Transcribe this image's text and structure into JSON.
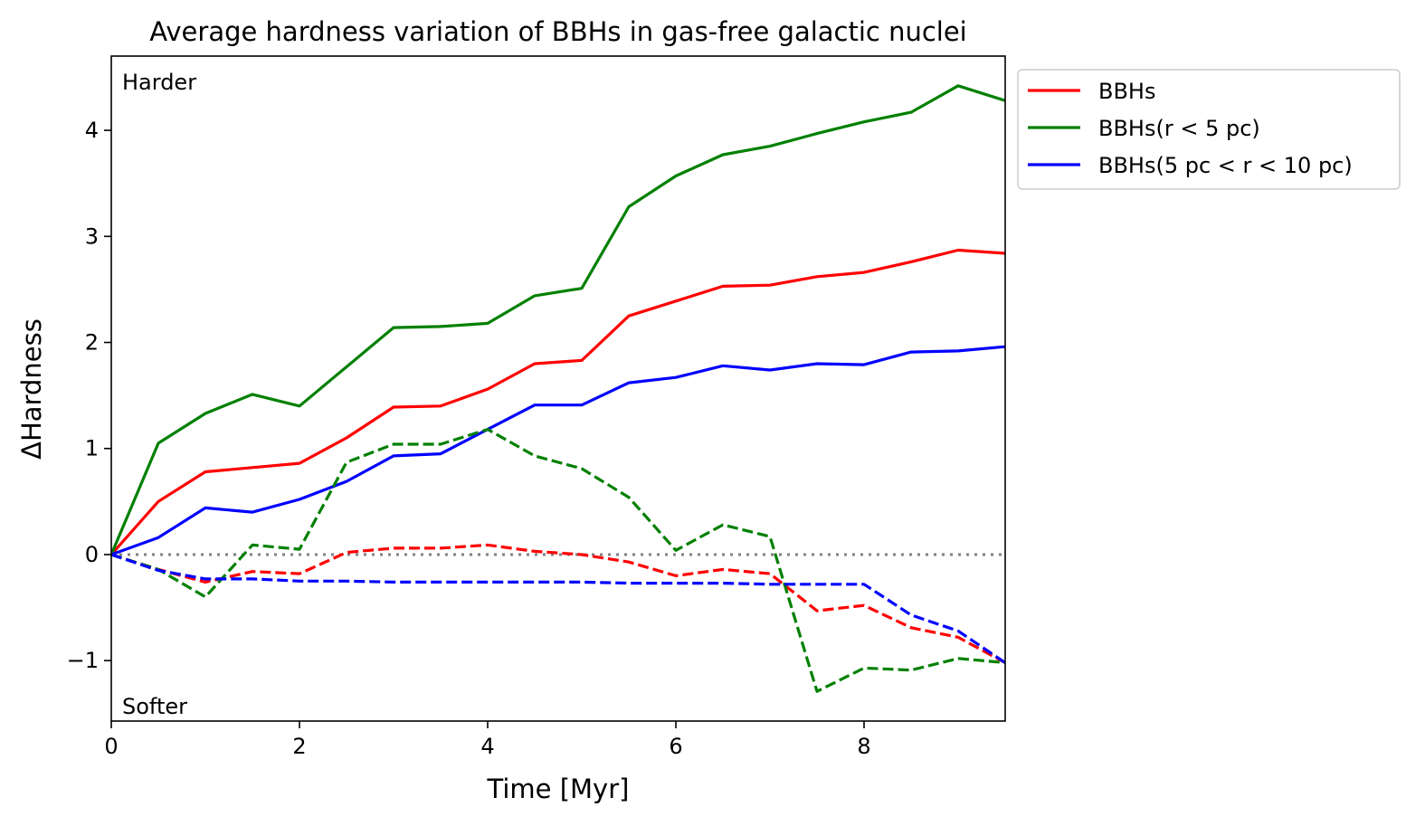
{
  "chart_data": {
    "type": "line",
    "title": "Average hardness variation of BBHs in gas-free galactic nuclei",
    "xlabel": "Time [Myr]",
    "ylabel": "ΔHardness",
    "xlim": [
      0,
      9.5
    ],
    "ylim": [
      -1.57,
      4.7
    ],
    "xticks": [
      0,
      2,
      4,
      6,
      8
    ],
    "xtick_labels": [
      "0",
      "2",
      "4",
      "6",
      "8"
    ],
    "yticks": [
      -1,
      0,
      1,
      2,
      3,
      4
    ],
    "ytick_labels": [
      "−1",
      "0",
      "1",
      "2",
      "3",
      "4"
    ],
    "grid": false,
    "legend_placement": "outside top-right",
    "annotations": {
      "top": "Harder",
      "bottom": "Softer"
    },
    "reference_line": {
      "y": 0,
      "style": "dotted",
      "color": "#808080"
    },
    "x": [
      0,
      0.5,
      1,
      1.5,
      2,
      2.5,
      3,
      3.5,
      4,
      4.5,
      5,
      5.5,
      6,
      6.5,
      7,
      7.5,
      8,
      8.5,
      9,
      9.5
    ],
    "series": [
      {
        "name": "BBHs",
        "color": "#ff0000",
        "style": "solid",
        "legend": true,
        "values": [
          0,
          0.5,
          0.78,
          0.82,
          0.86,
          1.1,
          1.39,
          1.4,
          1.56,
          1.8,
          1.83,
          2.25,
          2.39,
          2.53,
          2.54,
          2.62,
          2.66,
          2.76,
          2.87,
          2.84
        ]
      },
      {
        "name": "BBHs(r < 5 pc)",
        "color": "#008000",
        "style": "solid",
        "legend": true,
        "values": [
          0,
          1.05,
          1.33,
          1.51,
          1.4,
          1.77,
          2.14,
          2.15,
          2.18,
          2.44,
          2.51,
          3.28,
          3.57,
          3.77,
          3.85,
          3.97,
          4.08,
          4.17,
          4.42,
          4.28
        ]
      },
      {
        "name": "BBHs(5 pc < r < 10 pc)",
        "color": "#0000ff",
        "style": "solid",
        "legend": true,
        "values": [
          0,
          0.16,
          0.44,
          0.4,
          0.52,
          0.69,
          0.93,
          0.95,
          1.18,
          1.41,
          1.41,
          1.62,
          1.67,
          1.78,
          1.74,
          1.8,
          1.79,
          1.91,
          1.92,
          1.96
        ]
      },
      {
        "color": "#ff0000",
        "style": "dashed",
        "legend": false,
        "values": [
          0,
          -0.14,
          -0.26,
          -0.16,
          -0.18,
          0.02,
          0.06,
          0.06,
          0.09,
          0.03,
          0.0,
          -0.07,
          -0.2,
          -0.14,
          -0.18,
          -0.53,
          -0.48,
          -0.69,
          -0.78,
          -1.02
        ]
      },
      {
        "color": "#008000",
        "style": "dashed",
        "legend": false,
        "values": [
          0,
          -0.14,
          -0.4,
          0.09,
          0.05,
          0.87,
          1.04,
          1.04,
          1.18,
          0.93,
          0.81,
          0.54,
          0.04,
          0.28,
          0.17,
          -1.29,
          -1.07,
          -1.09,
          -0.98,
          -1.02
        ]
      },
      {
        "color": "#0000ff",
        "style": "dashed",
        "legend": false,
        "values": [
          0,
          -0.15,
          -0.23,
          -0.23,
          -0.25,
          -0.25,
          -0.26,
          -0.26,
          -0.26,
          -0.26,
          -0.26,
          -0.27,
          -0.27,
          -0.27,
          -0.28,
          -0.28,
          -0.28,
          -0.57,
          -0.72,
          -1.02
        ]
      }
    ]
  }
}
